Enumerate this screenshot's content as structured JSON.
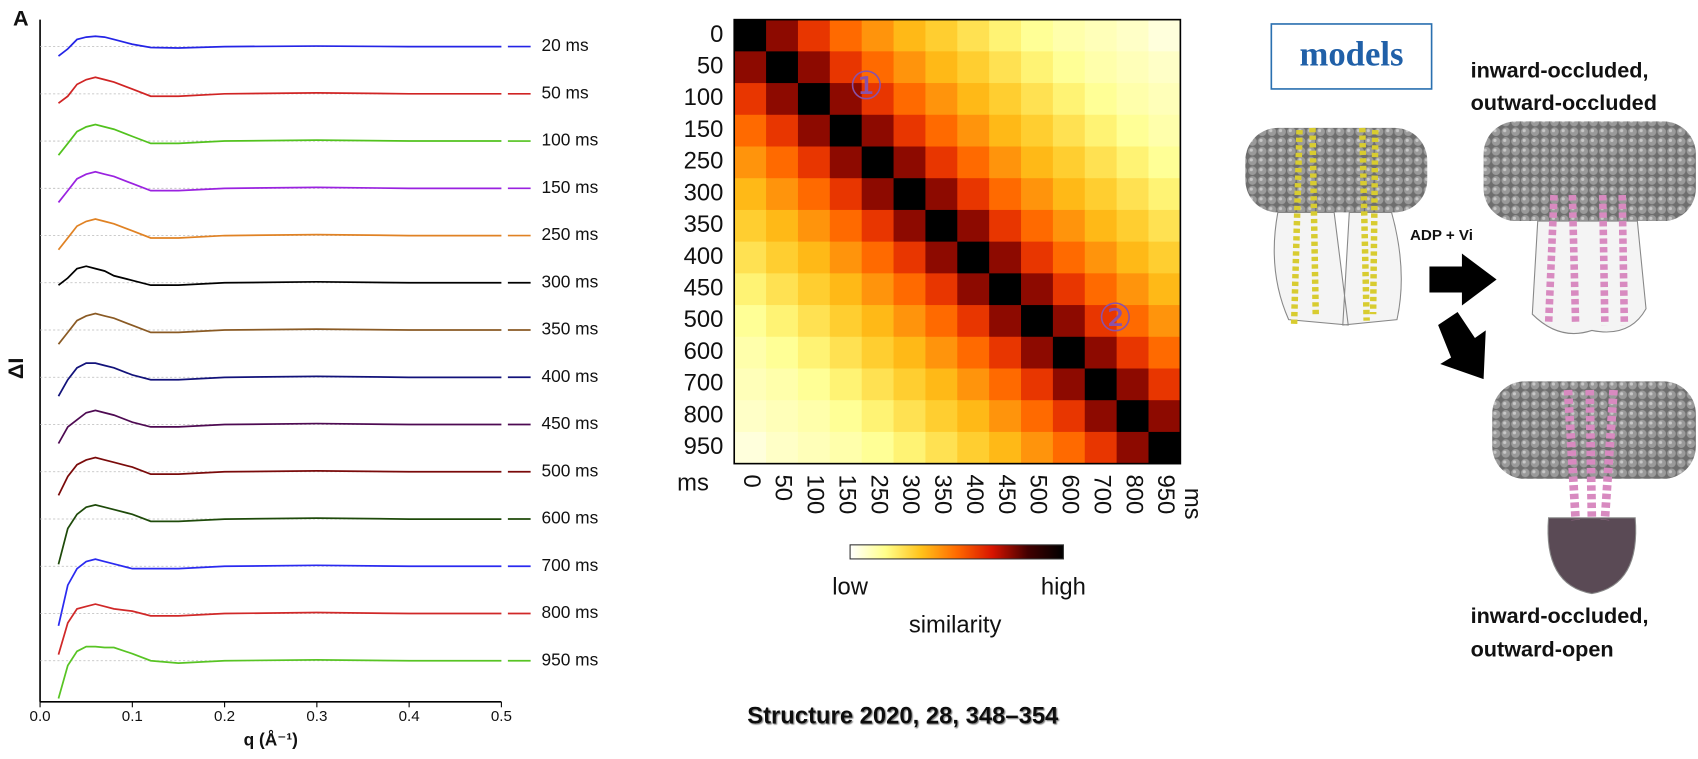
{
  "chart_data": [
    {
      "type": "line",
      "panel_label": "A",
      "xlabel": "q (Å⁻¹)",
      "ylabel": "ΔI",
      "x": [
        0.02,
        0.03,
        0.04,
        0.05,
        0.06,
        0.07,
        0.08,
        0.1,
        0.12,
        0.15,
        0.2,
        0.3,
        0.4,
        0.5
      ],
      "xlim": [
        0,
        0.5
      ],
      "xticks": [
        {
          "value": 0,
          "label": "0.0"
        },
        0.1,
        0.2,
        0.3,
        0.4,
        0.5
      ],
      "ylim": [
        -0.87,
        13.57
      ],
      "grid": true,
      "series": [
        {
          "name": "20 ms",
          "color": "#2424e6",
          "values": [
            12.8,
            12.95,
            13.15,
            13.2,
            13.22,
            13.2,
            13.15,
            13.05,
            12.98,
            12.97,
            13,
            13.01,
            13,
            13
          ]
        },
        {
          "name": "50 ms",
          "color": "#d02424",
          "values": [
            11.8,
            11.95,
            12.2,
            12.3,
            12.35,
            12.3,
            12.25,
            12.1,
            11.95,
            11.95,
            12,
            12.02,
            12,
            12
          ]
        },
        {
          "name": "100 ms",
          "color": "#52c21e",
          "values": [
            10.7,
            10.95,
            11.2,
            11.3,
            11.35,
            11.3,
            11.25,
            11.1,
            10.95,
            10.95,
            11,
            11.02,
            11,
            11
          ]
        },
        {
          "name": "150 ms",
          "color": "#9a22e0",
          "values": [
            9.7,
            9.95,
            10.2,
            10.3,
            10.35,
            10.3,
            10.25,
            10.1,
            9.95,
            9.95,
            10,
            10.02,
            10,
            10
          ]
        },
        {
          "name": "250 ms",
          "color": "#e08224",
          "values": [
            8.7,
            8.95,
            9.2,
            9.3,
            9.35,
            9.3,
            9.25,
            9.1,
            8.95,
            8.95,
            9,
            9.02,
            9,
            9
          ]
        },
        {
          "name": "300 ms",
          "color": "#000000",
          "values": [
            7.95,
            8.1,
            8.3,
            8.35,
            8.3,
            8.25,
            8.15,
            8.05,
            7.95,
            7.95,
            8,
            8.02,
            8,
            8
          ]
        },
        {
          "name": "350 ms",
          "color": "#8a5a24",
          "values": [
            6.7,
            6.95,
            7.2,
            7.3,
            7.35,
            7.3,
            7.25,
            7.1,
            6.95,
            6.95,
            7,
            7.02,
            7,
            7
          ]
        },
        {
          "name": "400 ms",
          "color": "#12127a",
          "values": [
            5.6,
            5.95,
            6.2,
            6.3,
            6.3,
            6.25,
            6.2,
            6.05,
            5.95,
            5.95,
            6,
            6.02,
            6,
            6
          ]
        },
        {
          "name": "450 ms",
          "color": "#4e0a52",
          "values": [
            4.6,
            4.95,
            5.1,
            5.25,
            5.3,
            5.25,
            5.2,
            5.05,
            4.95,
            4.95,
            5,
            5.02,
            5,
            5
          ]
        },
        {
          "name": "500 ms",
          "color": "#7a0a0a",
          "values": [
            3.5,
            3.9,
            4.15,
            4.25,
            4.3,
            4.25,
            4.2,
            4.1,
            3.95,
            3.95,
            4,
            4.02,
            4,
            4
          ]
        },
        {
          "name": "600 ms",
          "color": "#1e4a0a",
          "values": [
            2.04,
            2.8,
            3.1,
            3.25,
            3.3,
            3.25,
            3.2,
            3.1,
            2.95,
            2.95,
            3,
            3.02,
            3,
            3
          ]
        },
        {
          "name": "700 ms",
          "color": "#2a2af0",
          "values": [
            0.74,
            1.6,
            1.95,
            2.1,
            2.15,
            2.1,
            2.05,
            1.95,
            1.95,
            1.95,
            2,
            2.02,
            2,
            2
          ]
        },
        {
          "name": "800 ms",
          "color": "#d02828",
          "values": [
            0.13,
            0.8,
            1.1,
            1.15,
            1.2,
            1.15,
            1.1,
            1.05,
            0.95,
            0.95,
            1,
            1.02,
            1,
            1
          ]
        },
        {
          "name": "950 ms",
          "color": "#58c424",
          "values": [
            -0.8,
            -0.1,
            0.2,
            0.3,
            0.3,
            0.28,
            0.28,
            0.15,
            0,
            -0.05,
            0,
            0.02,
            0,
            0
          ]
        }
      ]
    },
    {
      "type": "heatmap",
      "xlabel": "ms",
      "ylabel": "ms",
      "categories": [
        0,
        50,
        100,
        150,
        250,
        300,
        350,
        400,
        450,
        500,
        600,
        700,
        800,
        950
      ],
      "values": [
        [
          1,
          0.75,
          0.6,
          0.5,
          0.42,
          0.35,
          0.3,
          0.25,
          0.2,
          0.15,
          0.12,
          0.1,
          0.08,
          0.05
        ],
        [
          0.75,
          1,
          0.75,
          0.6,
          0.5,
          0.42,
          0.35,
          0.3,
          0.25,
          0.2,
          0.15,
          0.12,
          0.1,
          0.08
        ],
        [
          0.6,
          0.75,
          1,
          0.75,
          0.6,
          0.5,
          0.42,
          0.35,
          0.3,
          0.25,
          0.2,
          0.15,
          0.12,
          0.1
        ],
        [
          0.5,
          0.6,
          0.75,
          1,
          0.75,
          0.6,
          0.5,
          0.42,
          0.35,
          0.3,
          0.25,
          0.2,
          0.15,
          0.12
        ],
        [
          0.42,
          0.5,
          0.6,
          0.75,
          1,
          0.75,
          0.6,
          0.5,
          0.42,
          0.35,
          0.3,
          0.25,
          0.2,
          0.15
        ],
        [
          0.35,
          0.42,
          0.5,
          0.6,
          0.75,
          1,
          0.75,
          0.6,
          0.5,
          0.42,
          0.35,
          0.3,
          0.25,
          0.2
        ],
        [
          0.3,
          0.35,
          0.42,
          0.5,
          0.6,
          0.75,
          1,
          0.75,
          0.6,
          0.5,
          0.42,
          0.35,
          0.3,
          0.25
        ],
        [
          0.25,
          0.3,
          0.35,
          0.42,
          0.5,
          0.6,
          0.75,
          1,
          0.75,
          0.6,
          0.5,
          0.42,
          0.35,
          0.3
        ],
        [
          0.2,
          0.25,
          0.3,
          0.35,
          0.42,
          0.5,
          0.6,
          0.75,
          1,
          0.75,
          0.6,
          0.5,
          0.42,
          0.35
        ],
        [
          0.15,
          0.2,
          0.25,
          0.3,
          0.35,
          0.42,
          0.5,
          0.6,
          0.75,
          1,
          0.75,
          0.6,
          0.5,
          0.42
        ],
        [
          0.12,
          0.15,
          0.2,
          0.25,
          0.3,
          0.35,
          0.42,
          0.5,
          0.6,
          0.75,
          1,
          0.75,
          0.6,
          0.5
        ],
        [
          0.1,
          0.12,
          0.15,
          0.2,
          0.25,
          0.3,
          0.35,
          0.42,
          0.5,
          0.6,
          0.75,
          1,
          0.75,
          0.6
        ],
        [
          0.08,
          0.1,
          0.12,
          0.15,
          0.2,
          0.25,
          0.3,
          0.35,
          0.42,
          0.5,
          0.6,
          0.75,
          1,
          0.75
        ],
        [
          0.05,
          0.08,
          0.1,
          0.12,
          0.15,
          0.2,
          0.25,
          0.3,
          0.35,
          0.42,
          0.5,
          0.6,
          0.75,
          1
        ]
      ],
      "colormap": [
        "#ffffff",
        "#ffff8a",
        "#ffc21a",
        "#ff6a00",
        "#d81400",
        "#420000",
        "#000000"
      ],
      "colorbar": {
        "label": "similarity",
        "ticks": [
          "low",
          "high"
        ]
      },
      "annotations": [
        "①",
        "②"
      ]
    }
  ],
  "models": {
    "title": "models",
    "state_top": [
      "inward-occluded,",
      "outward-occluded"
    ],
    "reagent": "ADP + Vi",
    "state_bottom": [
      "inward-occluded,",
      "outward-open"
    ]
  },
  "citation": "Structure 2020, 28, 348–354"
}
